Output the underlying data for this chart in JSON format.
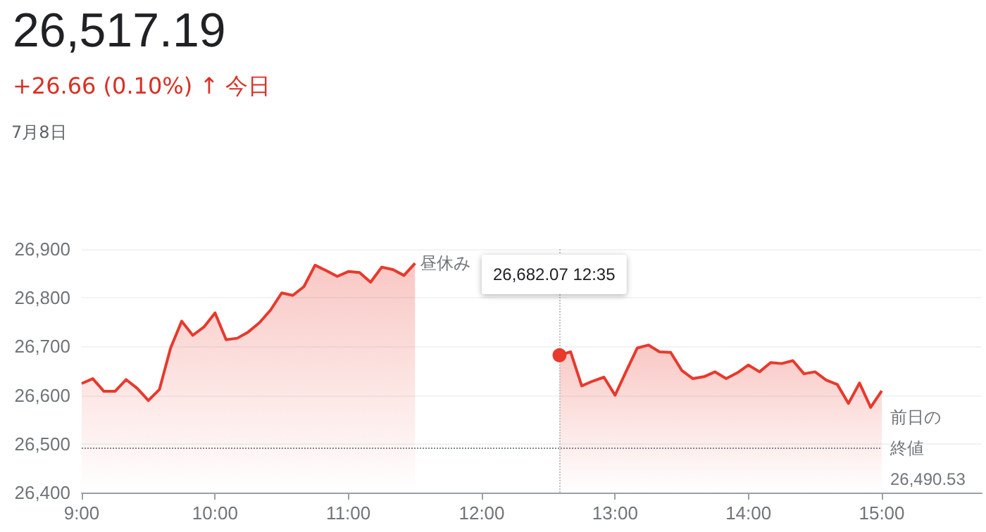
{
  "chart_data": {
    "type": "area",
    "title": "26,517.19",
    "subtitle": "+26.66 (0.10%) ↑ 今日",
    "annotations": [
      "7月8日",
      "昼休み",
      "26,682.07 12:35"
    ],
    "series": [
      {
        "color": "#e8392c",
        "x": [
          9,
          9.0833,
          9.1667,
          9.25,
          9.3333,
          9.4167,
          9.5,
          9.5833,
          9.6667,
          9.75,
          9.8333,
          9.9167,
          10,
          10.0833,
          10.1667,
          10.25,
          10.3333,
          10.4167,
          10.5,
          10.5833,
          10.6667,
          10.75,
          10.8333,
          10.9167,
          11,
          11.0833,
          11.1667,
          11.25,
          11.3333,
          11.4167,
          11.5
        ],
        "values": [
          26624,
          26634,
          26608,
          26608,
          26632,
          26614,
          26589,
          26612,
          26697,
          26752,
          26723,
          26740,
          26769,
          26714,
          26717,
          26730,
          26749,
          26775,
          26810,
          26805,
          26823,
          26867,
          26856,
          26844,
          26854,
          26852,
          26832,
          26863,
          26858,
          26846,
          26871
        ]
      },
      {
        "color": "#e8392c",
        "x": [
          12.5833,
          12.6667,
          12.75,
          12.8333,
          12.9167,
          13,
          13.0833,
          13.1667,
          13.25,
          13.3333,
          13.4167,
          13.5,
          13.5833,
          13.6667,
          13.75,
          13.8333,
          13.9167,
          14,
          14.0833,
          14.1667,
          14.25,
          14.3333,
          14.4167,
          14.5,
          14.5833,
          14.6667,
          14.75,
          14.8333,
          14.9167,
          15
        ],
        "values": [
          26682.07,
          26689,
          26619,
          26629,
          26637,
          26600,
          26649,
          26697,
          26703,
          26689,
          26688,
          26651,
          26634,
          26638,
          26648,
          26634,
          26646,
          26662,
          26648,
          26667,
          26665,
          26671,
          26644,
          26648,
          26631,
          26622,
          26583,
          26625,
          26575,
          26609
        ]
      }
    ],
    "xlim": [
      9,
      15.75
    ],
    "xticks": [
      {
        "value": 9,
        "label": "9:00"
      },
      {
        "value": 10,
        "label": "10:00"
      },
      {
        "value": 11,
        "label": "11:00"
      },
      {
        "value": 12,
        "label": "12:00"
      },
      {
        "value": 13,
        "label": "13:00"
      },
      {
        "value": 14,
        "label": "14:00"
      },
      {
        "value": 15,
        "label": "15:00"
      }
    ],
    "ylim": [
      26400,
      26900
    ],
    "yticks": [
      {
        "value": 26400,
        "label": "26,400"
      },
      {
        "value": 26500,
        "label": "26,500"
      },
      {
        "value": 26600,
        "label": "26,600"
      },
      {
        "value": 26700,
        "label": "26,700"
      },
      {
        "value": 26800,
        "label": "26,800"
      },
      {
        "value": 26900,
        "label": "26,900"
      }
    ],
    "ref_lines": [
      {
        "axis": "y",
        "value": 26490.53,
        "label": "前日の終値\n26,490.53",
        "color": "#80868b",
        "line_style": "dotted"
      },
      {
        "axis": "x",
        "value": 12.5833,
        "color": "#bdc1c6",
        "line_style": "dotted"
      }
    ],
    "grid": "y",
    "marker": "none",
    "line_style": "solid"
  }
}
